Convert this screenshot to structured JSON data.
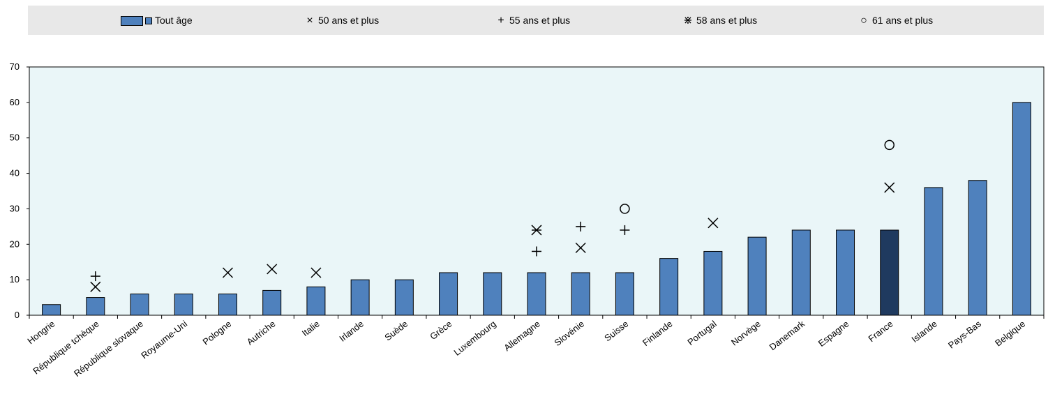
{
  "legend": {
    "bars": "Tout âge",
    "s50": "50 ans et plus",
    "s55": "55 ans et plus",
    "s58": "58 ans et plus",
    "s61": "61 ans et plus"
  },
  "icons": {
    "s50": "x-mark-icon",
    "s55": "plus-mark-icon",
    "s58": "asterisk-mark-icon",
    "s61": "circle-mark-icon"
  },
  "colors": {
    "bar": "#4f81bd",
    "highlight": "#1f3a5f",
    "plot_bg": "#eaf6f8",
    "legend_bg": "#e8e8e8"
  },
  "chart_data": {
    "type": "bar",
    "categories": [
      "Hongrie",
      "République tchèque",
      "République slovaque",
      "Royaume-Uni",
      "Pologne",
      "Autriche",
      "Italie",
      "Irlande",
      "Suède",
      "Grèce",
      "Luxembourg",
      "Allemagne",
      "Slovénie",
      "Suisse",
      "Finlande",
      "Portugal",
      "Norvège",
      "Danemark",
      "Espagne",
      "France",
      "Islande",
      "Pays-Bas",
      "Belgique"
    ],
    "series": [
      {
        "name": "Tout âge",
        "type": "bar",
        "values": [
          3,
          5,
          6,
          6,
          6,
          7,
          8,
          10,
          10,
          12,
          12,
          12,
          12,
          12,
          16,
          18,
          22,
          24,
          24,
          24,
          36,
          38,
          60
        ]
      },
      {
        "name": "50 ans et plus",
        "type": "marker",
        "values": [
          null,
          8,
          null,
          null,
          12,
          13,
          12,
          null,
          null,
          null,
          null,
          null,
          19,
          null,
          null,
          26,
          null,
          null,
          null,
          36,
          null,
          null,
          null
        ]
      },
      {
        "name": "55 ans et plus",
        "type": "marker",
        "values": [
          null,
          11,
          null,
          null,
          null,
          null,
          null,
          null,
          null,
          null,
          null,
          18,
          25,
          24,
          null,
          null,
          null,
          null,
          null,
          null,
          null,
          null,
          null
        ]
      },
      {
        "name": "58 ans et plus",
        "type": "marker",
        "values": [
          null,
          null,
          null,
          null,
          null,
          null,
          null,
          null,
          null,
          null,
          null,
          24,
          null,
          null,
          null,
          null,
          null,
          null,
          null,
          null,
          null,
          null,
          null
        ]
      },
      {
        "name": "61 ans et plus",
        "type": "marker",
        "values": [
          null,
          null,
          null,
          null,
          null,
          null,
          null,
          null,
          null,
          null,
          null,
          null,
          null,
          30,
          null,
          null,
          null,
          null,
          null,
          48,
          null,
          null,
          null
        ]
      }
    ],
    "highlight_category": "France",
    "yticks": [
      0,
      10,
      20,
      30,
      40,
      50,
      60,
      70
    ],
    "ylim": [
      0,
      70
    ],
    "grid": false,
    "legend_position": "top"
  }
}
